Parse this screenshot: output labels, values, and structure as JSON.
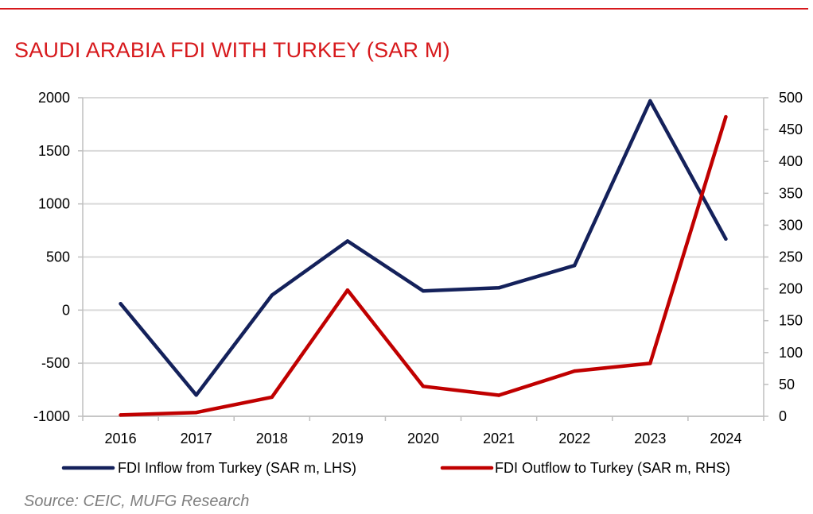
{
  "title": "SAUDI ARABIA FDI WITH TURKEY (SAR M)",
  "source": "Source: CEIC, MUFG Research",
  "chart_data": {
    "type": "line",
    "categories": [
      "2016",
      "2017",
      "2018",
      "2019",
      "2020",
      "2021",
      "2022",
      "2023",
      "2024"
    ],
    "y_left": {
      "min": -1000,
      "max": 2000,
      "step": 500,
      "ticks": [
        "-1000",
        "-500",
        "0",
        "500",
        "1000",
        "1500",
        "2000"
      ]
    },
    "y_right": {
      "min": 0,
      "max": 500,
      "step": 50,
      "ticks": [
        "0",
        "50",
        "100",
        "150",
        "200",
        "250",
        "300",
        "350",
        "400",
        "450",
        "500"
      ]
    },
    "grid": true,
    "legend_position": "bottom",
    "series": [
      {
        "name": "FDI Inflow from Turkey (SAR m, LHS)",
        "axis": "left",
        "color": "#14215b",
        "values": [
          60,
          -800,
          140,
          650,
          180,
          210,
          420,
          1970,
          670
        ]
      },
      {
        "name": "FDI Outflow to Turkey (SAR m, RHS)",
        "axis": "right",
        "color": "#c00000",
        "values": [
          2,
          6,
          30,
          198,
          47,
          33,
          71,
          83,
          470
        ]
      }
    ]
  }
}
